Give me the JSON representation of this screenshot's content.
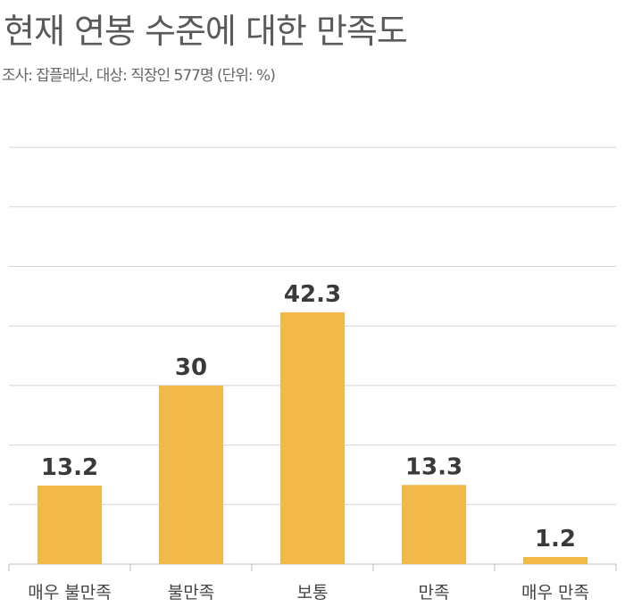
{
  "title": "현재 연봉 수준에 대한 만족도",
  "subtitle": "조사: 잡플래닛, 대상: 직장인 577명 (단위: %)",
  "colors": {
    "bar": "#f1b94a",
    "grid": "#d4d4d4",
    "axis": "#bdbdbd"
  },
  "chart_data": {
    "type": "bar",
    "categories": [
      "매우 불만족",
      "불만족",
      "보통",
      "만족",
      "매우 만족"
    ],
    "values": [
      13.2,
      30,
      42.3,
      13.3,
      1.2
    ],
    "value_labels": [
      "13.2",
      "30",
      "42.3",
      "13.3",
      "1.2"
    ],
    "ylim": [
      0,
      70
    ],
    "grid": true,
    "title": "현재 연봉 수준에 대한 만족도",
    "xlabel": "",
    "ylabel": ""
  }
}
